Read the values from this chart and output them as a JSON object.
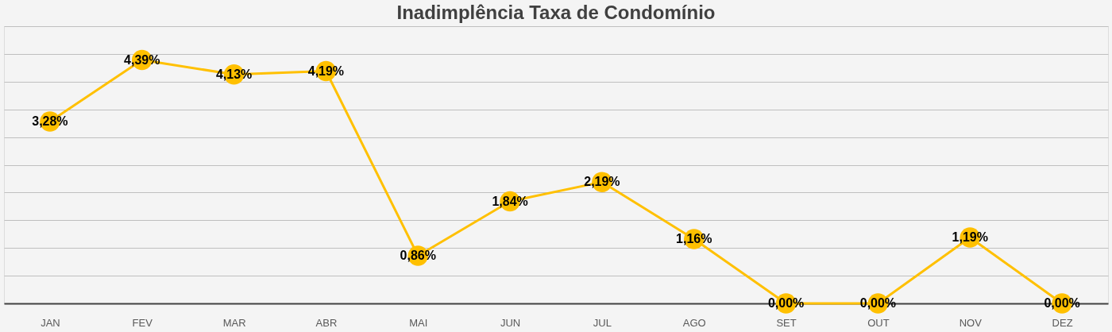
{
  "chart_data": {
    "type": "line",
    "title": "Inadimplência Taxa de Condomínio",
    "categories": [
      "JAN",
      "FEV",
      "MAR",
      "ABR",
      "MAI",
      "JUN",
      "JUL",
      "AGO",
      "SET",
      "OUT",
      "NOV",
      "DEZ"
    ],
    "series": [
      {
        "color": "#ffc000",
        "values": [
          3.28,
          4.39,
          4.13,
          4.19,
          0.86,
          1.84,
          2.19,
          1.16,
          0.0,
          0.0,
          1.19,
          0.0
        ],
        "value_labels": [
          "3,28%",
          "4,39%",
          "4,13%",
          "4,19%",
          "0,86%",
          "1,84%",
          "2,19%",
          "1,16%",
          "0,00%",
          "0,00%",
          "1,19%",
          "0,00%"
        ]
      }
    ],
    "ylim": [
      0,
      5
    ],
    "grid": "y",
    "tick_labels": "x",
    "marker": "circle",
    "line_style": "solid"
  }
}
